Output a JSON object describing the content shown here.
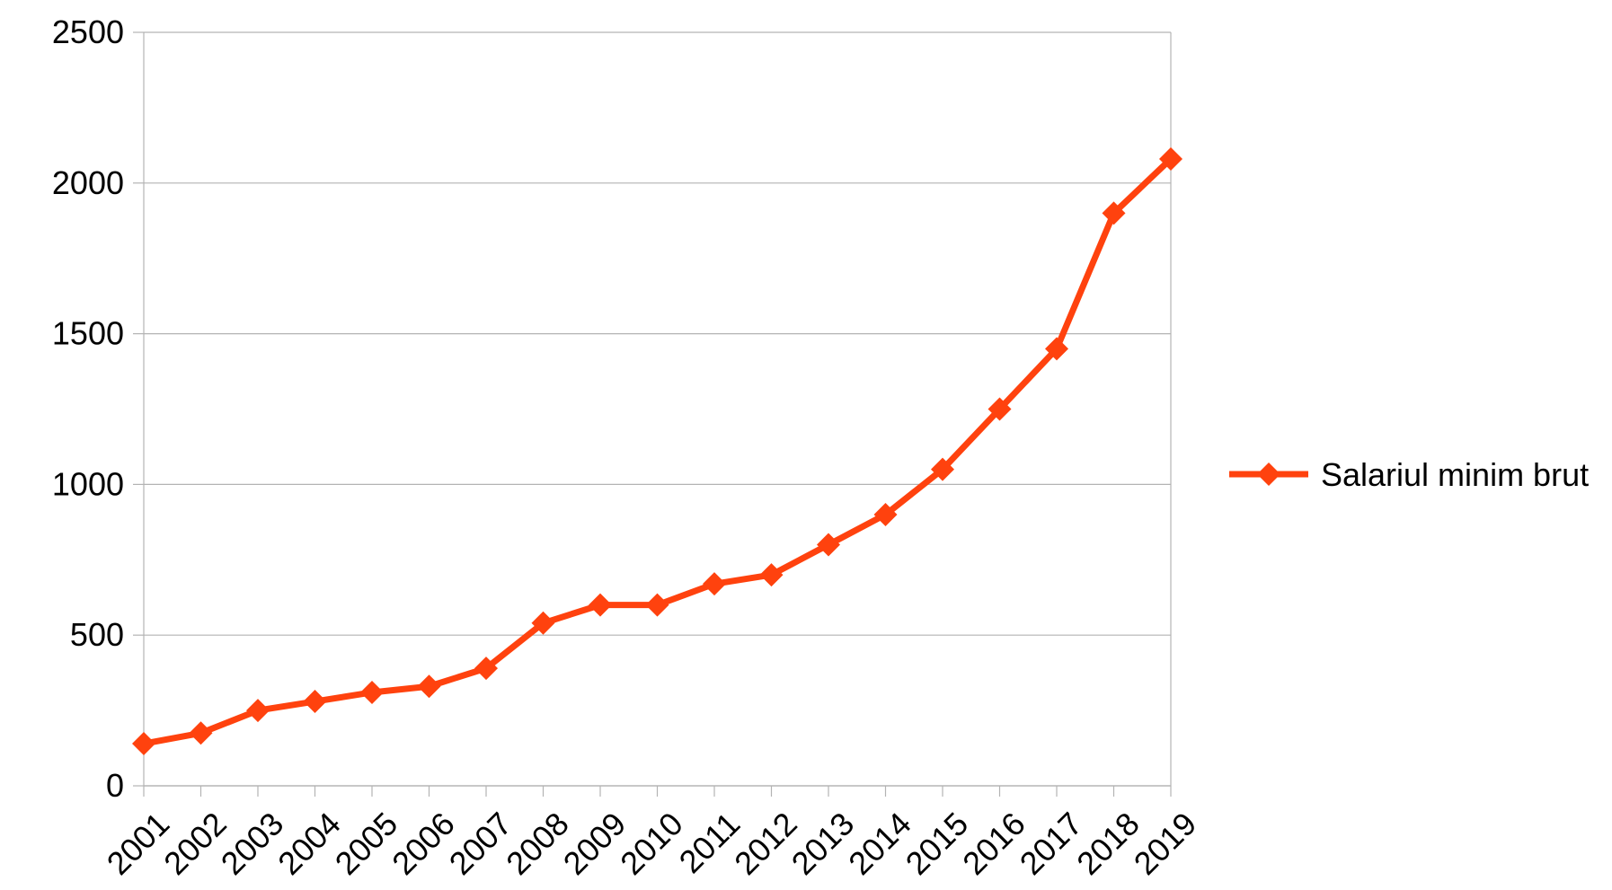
{
  "chart_data": {
    "type": "line",
    "title": "",
    "xlabel": "",
    "ylabel": "",
    "categories": [
      "2001",
      "2002",
      "2003",
      "2004",
      "2005",
      "2006",
      "2007",
      "2008",
      "2009",
      "2010",
      "2011",
      "2012",
      "2013",
      "2014",
      "2015",
      "2016",
      "2017",
      "2018",
      "2019"
    ],
    "series": [
      {
        "name": "Salariul minim brut",
        "color": "#ff420e",
        "marker": "diamond",
        "values": [
          140,
          175,
          250,
          280,
          310,
          330,
          390,
          540,
          600,
          600,
          670,
          700,
          800,
          900,
          1050,
          1250,
          1450,
          1900,
          2080
        ]
      }
    ],
    "ylim": [
      0,
      2500
    ],
    "yticks": [
      0,
      500,
      1000,
      1500,
      2000,
      2500
    ],
    "grid": "horizontal",
    "gridColor": "#b3b3b3",
    "legend": "right"
  }
}
